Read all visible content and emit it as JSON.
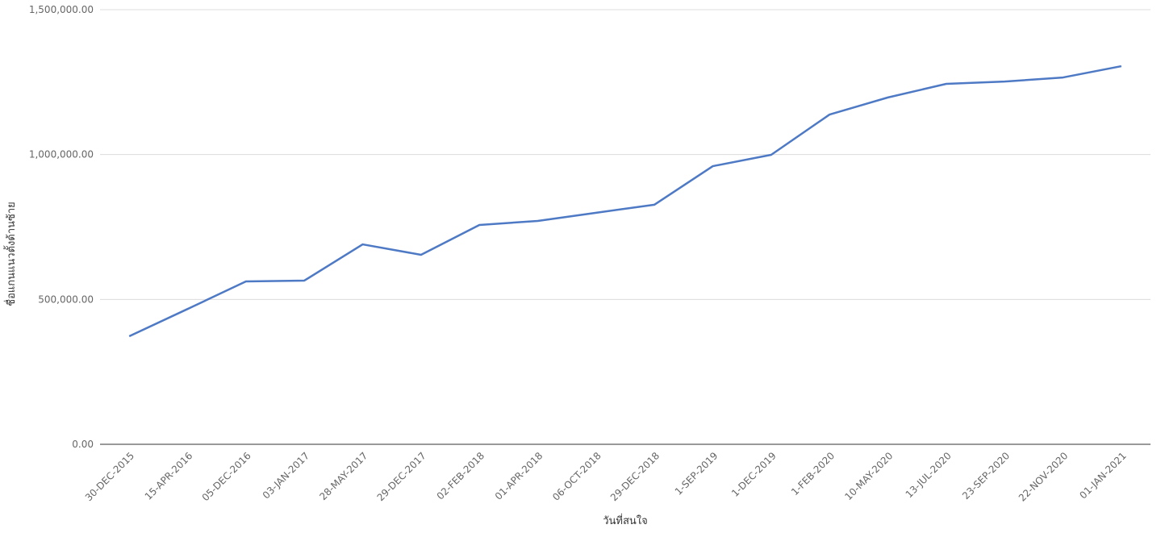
{
  "chart_data": {
    "type": "line",
    "x_label": "วันที่สนใจ",
    "y_label": "ชื่อแกนแนวตั้งด้านซ้าย",
    "categories": [
      "30-DEC-2015",
      "15-APR-2016",
      "05-DEC-2016",
      "03-JAN-2017",
      "28-MAY-2017",
      "29-DEC-2017",
      "02-FEB-2018",
      "01-APR-2018",
      "06-OCT-2018",
      "29-DEC-2018",
      "1-SEP-2019",
      "1-DEC-2019",
      "1-FEB-2020",
      "10-MAY-2020",
      "13-JUL-2020",
      "23-SEP-2020",
      "22-NOV-2020",
      "01-JAN-2021"
    ],
    "values": [
      373000,
      467000,
      562000,
      565000,
      690000,
      654000,
      757000,
      771000,
      799000,
      827000,
      960000,
      999000,
      1138000,
      1197000,
      1244000,
      1252000,
      1266000,
      1305000
    ],
    "color": "#4e79c4",
    "ylim": [
      0,
      1500000
    ],
    "yticks": [
      {
        "value": 0,
        "label": "0.00"
      },
      {
        "value": 500000,
        "label": "500,000.00"
      },
      {
        "value": 1000000,
        "label": "1,000,000.00"
      },
      {
        "value": 1500000,
        "label": "1,500,000.00"
      }
    ],
    "grid": true
  }
}
